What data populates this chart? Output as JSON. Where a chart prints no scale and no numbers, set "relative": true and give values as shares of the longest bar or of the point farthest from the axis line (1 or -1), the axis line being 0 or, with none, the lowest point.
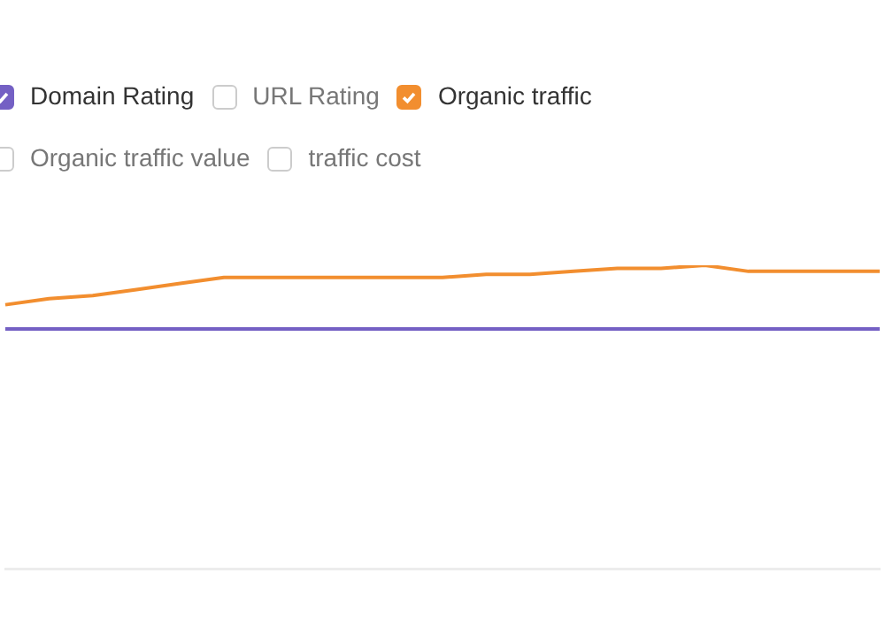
{
  "chart_data": {
    "type": "line",
    "relative": true,
    "categories": [
      null,
      null,
      null,
      null,
      null,
      null,
      null,
      null,
      null,
      null,
      null,
      null,
      null,
      null,
      null,
      null,
      null,
      null,
      null,
      null,
      null
    ],
    "series": [
      {
        "name": "Domain Rating",
        "color": "#7460c4",
        "values": [
          0.79,
          0.79,
          0.79,
          0.79,
          0.79,
          0.79,
          0.79,
          0.79,
          0.79,
          0.79,
          0.79,
          0.79,
          0.79,
          0.79,
          0.79,
          0.79,
          0.79,
          0.79,
          0.79,
          0.79,
          0.79
        ]
      },
      {
        "name": "Organic traffic",
        "color": "#f28e2f",
        "values": [
          0.87,
          0.89,
          0.9,
          0.92,
          0.94,
          0.96,
          0.96,
          0.96,
          0.96,
          0.96,
          0.96,
          0.97,
          0.97,
          0.98,
          0.99,
          0.99,
          1,
          0.98,
          0.98,
          0.98,
          0.98
        ]
      }
    ],
    "annotations": [
      "URL Rating",
      "Organic traffic value",
      "traffic cost"
    ],
    "legend": "top",
    "marker": "none",
    "line_style": "solid"
  }
}
